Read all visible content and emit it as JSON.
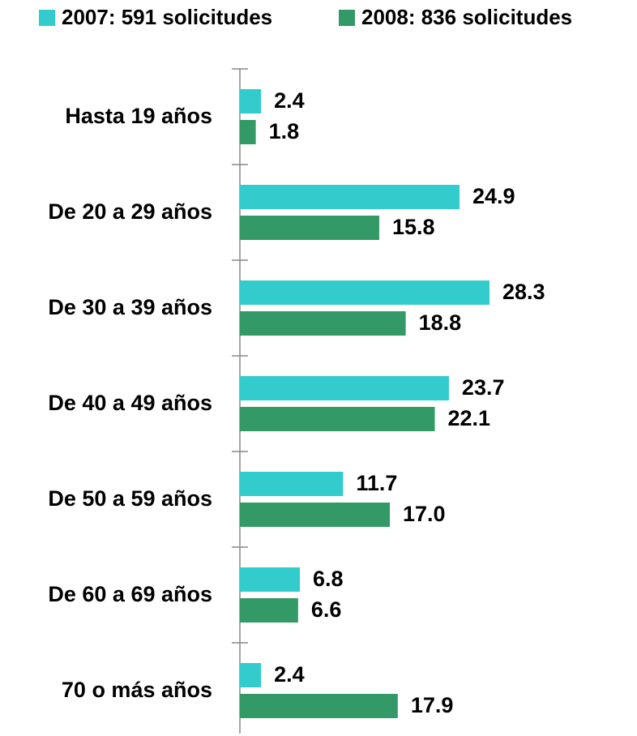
{
  "chart_data": {
    "type": "bar",
    "orientation": "horizontal",
    "categories": [
      "Hasta 19 años",
      "De 20 a 29 años",
      "De 30 a 39 años",
      "De 40 a 49 años",
      "De 50 a 59 años",
      "De 60 a 69 años",
      "70 o más años"
    ],
    "series": [
      {
        "name": "2007: 591 solicitudes",
        "color": "#33cccc",
        "values": [
          2.4,
          24.9,
          28.3,
          23.7,
          11.7,
          6.8,
          2.4
        ],
        "value_labels": [
          "2.4",
          "24.9",
          "28.3",
          "23.7",
          "11.7",
          "6.8",
          "2.4"
        ]
      },
      {
        "name": "2008: 836 solicitudes",
        "color": "#339966",
        "values": [
          1.8,
          15.8,
          18.8,
          22.1,
          17.0,
          6.6,
          17.9
        ],
        "value_labels": [
          "1.8",
          "15.8",
          "18.8",
          "22.1",
          "17.0",
          "6.6",
          "17.9"
        ]
      }
    ],
    "legend": "top"
  }
}
